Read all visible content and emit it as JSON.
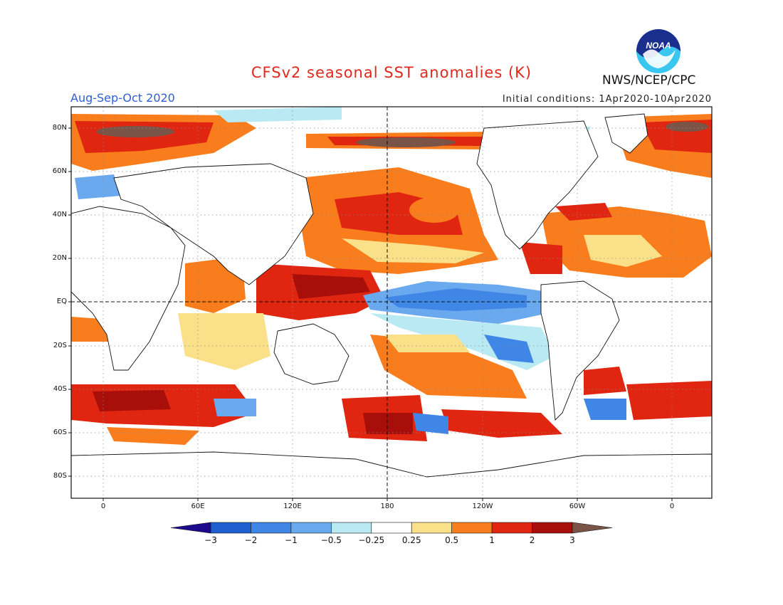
{
  "header": {
    "title": "CFSv2 seasonal SST anomalies (K)",
    "season": "Aug-Sep-Oct 2020",
    "initial_conditions": "Initial conditions: 1Apr2020-10Apr2020",
    "agency": "NWS/NCEP/CPC",
    "logo_text": "NOAA"
  },
  "axes": {
    "lat_labels": [
      "80N",
      "60N",
      "40N",
      "20N",
      "EQ",
      "20S",
      "40S",
      "60S",
      "80S"
    ],
    "lon_labels": [
      "0",
      "60E",
      "120E",
      "180",
      "120W",
      "60W",
      "0"
    ]
  },
  "colorbar": {
    "levels": [
      "-3",
      "-2",
      "-1",
      "-0.5",
      "-0.25",
      "0.25",
      "0.5",
      "1",
      "2",
      "3"
    ],
    "colors": [
      "#1c0a8c",
      "#1f5fcf",
      "#3f86e6",
      "#6aa9ee",
      "#b9e9f2",
      "#ffffff",
      "#fbe08a",
      "#f97d1c",
      "#e02610",
      "#a80f0b",
      "#7a5446"
    ]
  },
  "map_colors": {
    "land": "#ffffff",
    "coast": "#111111"
  }
}
